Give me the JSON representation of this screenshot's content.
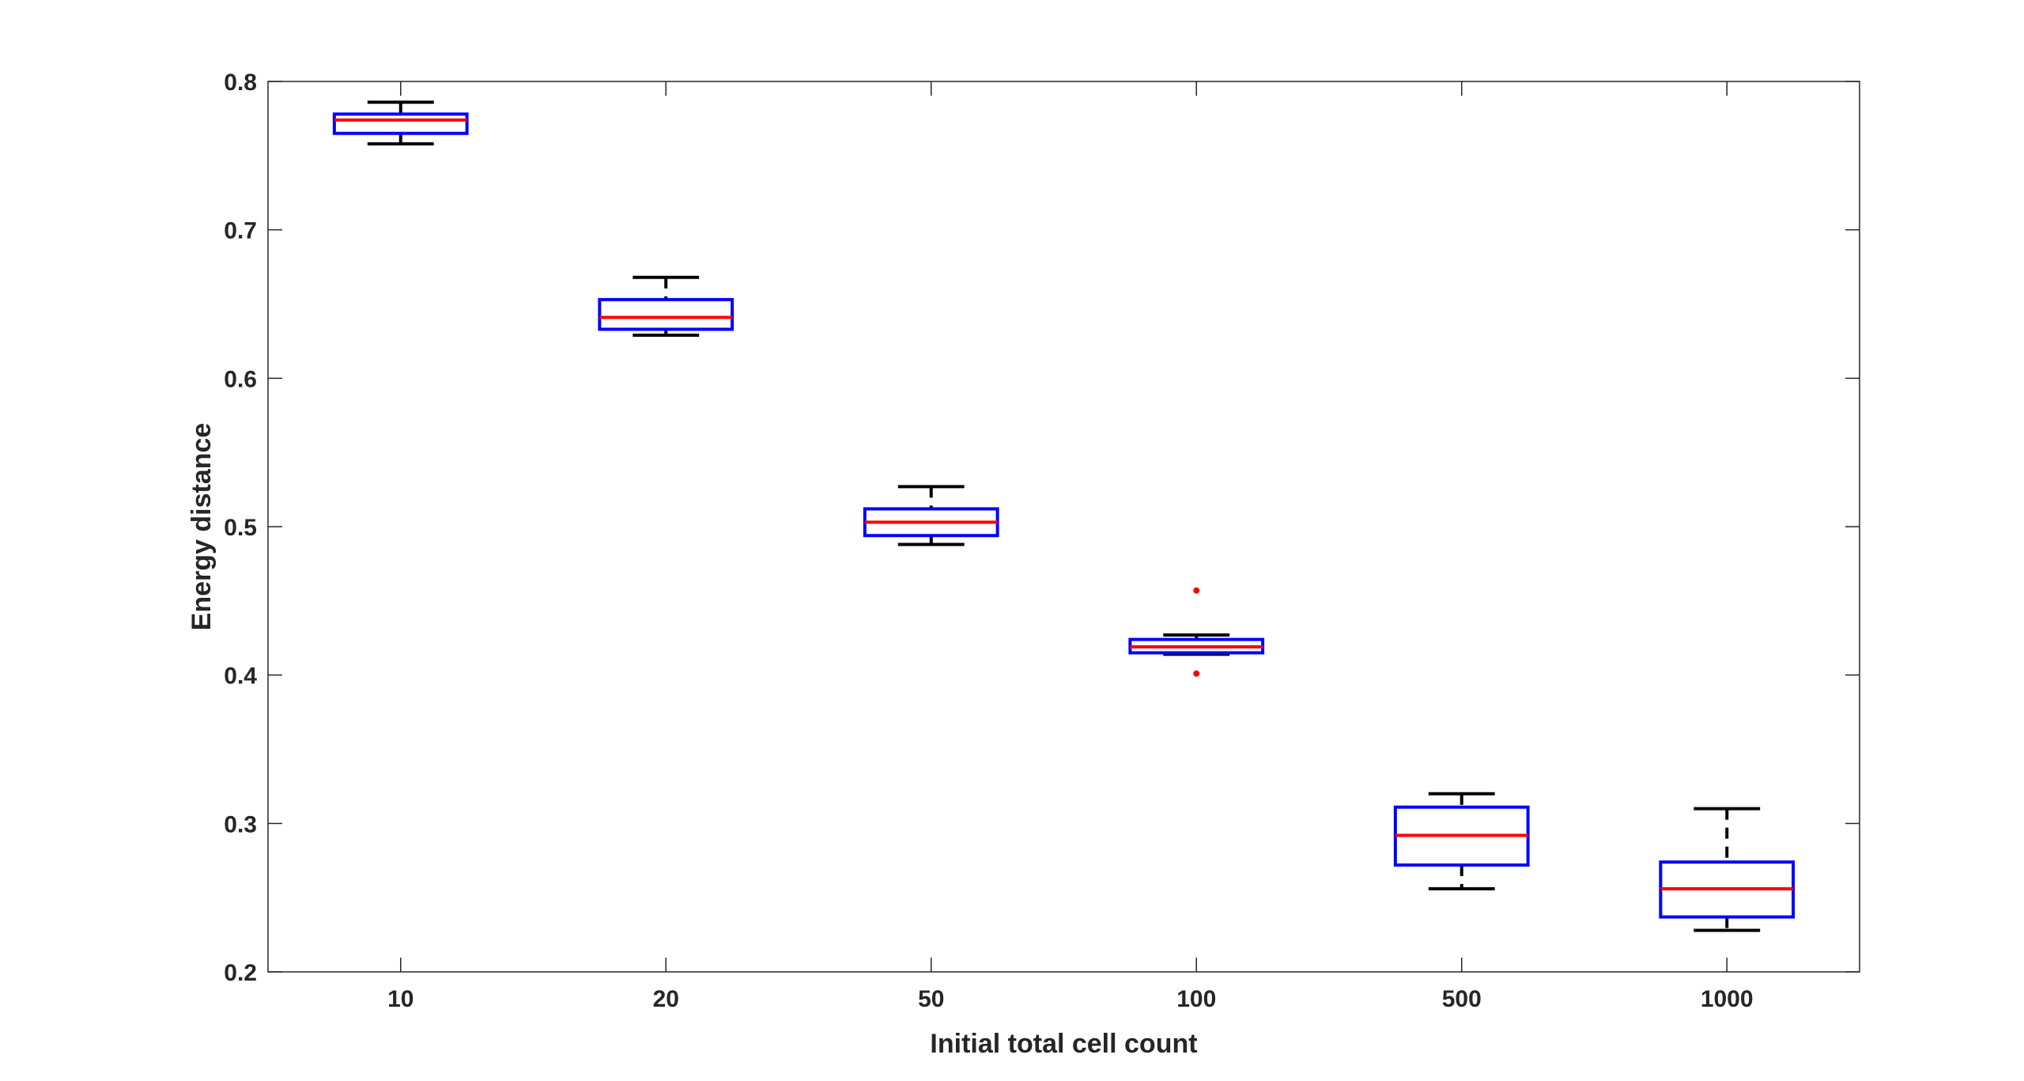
{
  "chart_data": {
    "type": "box",
    "xlabel": "Initial total cell count",
    "ylabel": "Energy distance",
    "categories": [
      "10",
      "20",
      "50",
      "100",
      "500",
      "1000"
    ],
    "ylim": [
      0.2,
      0.8
    ],
    "yticks": [
      0.2,
      0.3,
      0.4,
      0.5,
      0.6,
      0.7,
      0.8
    ],
    "ytick_labels": [
      "0.2",
      "0.3",
      "0.4",
      "0.5",
      "0.6",
      "0.7",
      "0.8"
    ],
    "boxes": [
      {
        "category": "10",
        "min": 0.758,
        "q1": 0.765,
        "median": 0.774,
        "q3": 0.778,
        "max": 0.786,
        "outliers": []
      },
      {
        "category": "20",
        "min": 0.629,
        "q1": 0.633,
        "median": 0.641,
        "q3": 0.653,
        "max": 0.668,
        "outliers": []
      },
      {
        "category": "50",
        "min": 0.488,
        "q1": 0.494,
        "median": 0.503,
        "q3": 0.512,
        "max": 0.527,
        "outliers": []
      },
      {
        "category": "100",
        "min": 0.414,
        "q1": 0.415,
        "median": 0.419,
        "q3": 0.424,
        "max": 0.427,
        "outliers": [
          0.457,
          0.401
        ]
      },
      {
        "category": "500",
        "min": 0.256,
        "q1": 0.272,
        "median": 0.292,
        "q3": 0.311,
        "max": 0.32,
        "outliers": []
      },
      {
        "category": "1000",
        "min": 0.228,
        "q1": 0.237,
        "median": 0.256,
        "q3": 0.274,
        "max": 0.31,
        "outliers": []
      }
    ],
    "colors": {
      "box": "#0000ff",
      "median": "#ff0000",
      "whisker": "#000000",
      "outlier": "#ff0000",
      "axis": "#262626"
    },
    "grid": false
  }
}
